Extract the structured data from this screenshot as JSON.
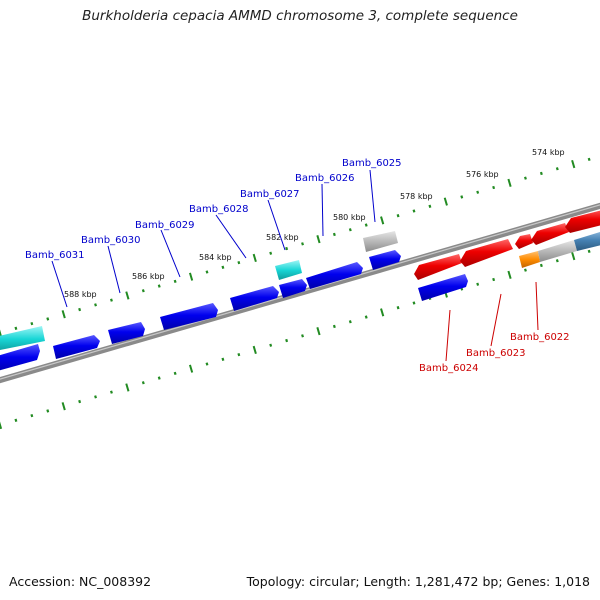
{
  "title": "Burkholderia cepacia AMMD chromosome 3, complete sequence",
  "footer": {
    "accession": "Accession: NC_008392",
    "topology": "Topology: circular; Length: 1,281,472 bp; Genes: 1,018"
  },
  "colors": {
    "backbone": "#808080",
    "ticks": "#228b22",
    "forward_gene": "#0000ee",
    "reverse_gene": "#ee0000",
    "forward_label": "#0000cc",
    "reverse_label": "#cc0000",
    "cyan_feature": "#19d6d6",
    "grey_feature": "#b8b8b8",
    "orange_feature": "#ff8c00",
    "steelblue_feature": "#4682b4"
  },
  "kbp_labels": [
    "574 kbp",
    "576 kbp",
    "578 kbp",
    "580 kbp",
    "582 kbp",
    "584 kbp",
    "586 kbp",
    "588 kbp"
  ],
  "gene_labels": [
    "Bamb_6025",
    "Bamb_6026",
    "Bamb_6027",
    "Bamb_6028",
    "Bamb_6029",
    "Bamb_6030",
    "Bamb_6031",
    "Bamb_6022",
    "Bamb_6023",
    "Bamb_6024"
  ]
}
